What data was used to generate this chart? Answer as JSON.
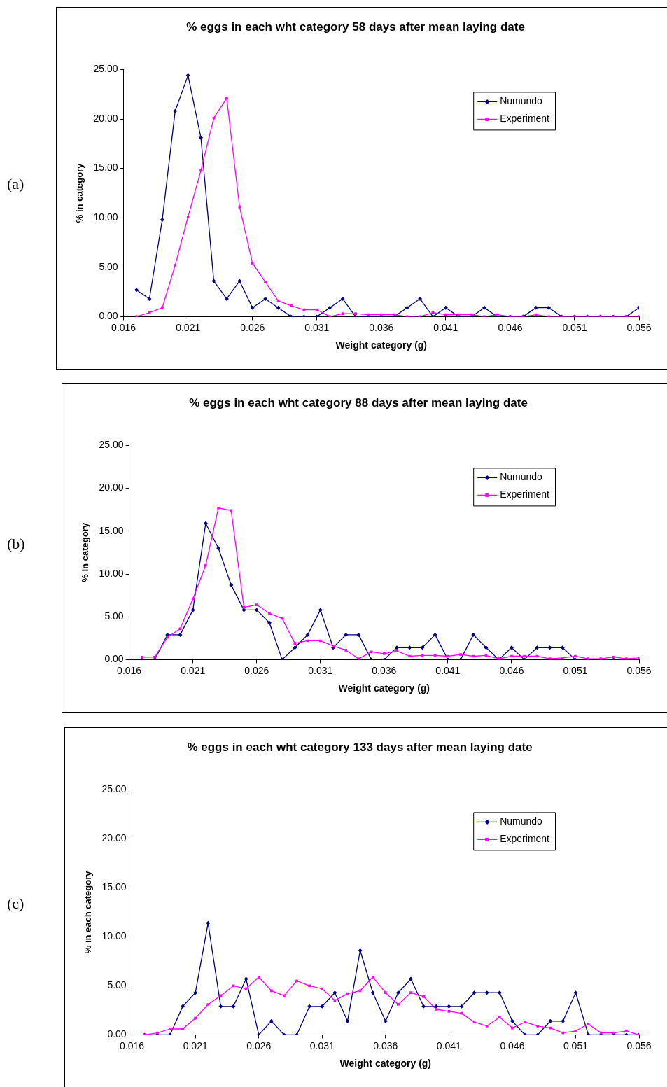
{
  "chart_data": [
    {
      "type": "line",
      "title": "% eggs in each wht category 58 days after mean laying date",
      "xlabel": "Weight category (g)",
      "ylabel": "% in category",
      "annotations": [
        "(a)"
      ],
      "x": [
        0.017,
        0.018,
        0.019,
        0.02,
        0.021,
        0.022,
        0.023,
        0.024,
        0.025,
        0.026,
        0.027,
        0.028,
        0.029,
        0.03,
        0.031,
        0.032,
        0.033,
        0.034,
        0.035,
        0.036,
        0.037,
        0.038,
        0.039,
        0.04,
        0.041,
        0.042,
        0.043,
        0.044,
        0.045,
        0.046,
        0.047,
        0.048,
        0.049,
        0.05,
        0.051,
        0.052,
        0.053,
        0.054,
        0.055,
        0.056
      ],
      "series": [
        {
          "name": "Numundo",
          "color": "#000080",
          "marker": "diamond",
          "values": [
            2.7,
            1.8,
            9.8,
            20.8,
            24.4,
            18.1,
            3.6,
            1.8,
            3.6,
            0.9,
            1.8,
            0.9,
            0,
            0,
            0,
            0.9,
            1.8,
            0,
            0,
            0,
            0,
            0.9,
            1.8,
            0,
            0.9,
            0,
            0,
            0.9,
            0,
            0,
            0,
            0.9,
            0.9,
            0,
            0,
            0,
            0,
            0,
            0,
            0.9
          ]
        },
        {
          "name": "Experiment",
          "color": "#ff00ff",
          "marker": "square",
          "values": [
            0,
            0.4,
            0.9,
            5.2,
            10.1,
            14.8,
            20.1,
            22.1,
            11.1,
            5.4,
            3.5,
            1.6,
            1.1,
            0.7,
            0.7,
            0,
            0.3,
            0.3,
            0.2,
            0.2,
            0.2,
            0,
            0,
            0.4,
            0.2,
            0.2,
            0.2,
            0,
            0.2,
            0,
            0,
            0.2,
            0,
            0,
            0,
            0,
            0,
            0,
            0,
            0
          ]
        }
      ],
      "xlim": [
        0.016,
        0.056
      ],
      "xticks": [
        0.016,
        0.021,
        0.026,
        0.031,
        0.036,
        0.041,
        0.046,
        0.051,
        0.056
      ],
      "ylim": [
        0,
        25
      ],
      "yticks": [
        {
          "value": 0,
          "label": "0.00"
        },
        {
          "value": 5,
          "label": "5.00"
        },
        {
          "value": 10,
          "label": "10.00"
        },
        {
          "value": 15,
          "label": "15.00"
        },
        {
          "value": 20,
          "label": "20.00"
        },
        {
          "value": 25,
          "label": "25.00"
        }
      ],
      "grid": false,
      "legend": "top right",
      "line_style": "solid"
    },
    {
      "type": "line",
      "title": "% eggs in each wht category 88 days after mean laying date",
      "xlabel": "Weight category (g)",
      "ylabel": "% in category",
      "annotations": [
        "(b)"
      ],
      "x": [
        0.017,
        0.018,
        0.019,
        0.02,
        0.021,
        0.022,
        0.023,
        0.024,
        0.025,
        0.026,
        0.027,
        0.028,
        0.029,
        0.03,
        0.031,
        0.032,
        0.033,
        0.034,
        0.035,
        0.036,
        0.037,
        0.038,
        0.039,
        0.04,
        0.041,
        0.042,
        0.043,
        0.044,
        0.045,
        0.046,
        0.047,
        0.048,
        0.049,
        0.05,
        0.051,
        0.052,
        0.053,
        0.054,
        0.055,
        0.056
      ],
      "series": [
        {
          "name": "Numundo",
          "color": "#000080",
          "marker": "diamond",
          "values": [
            0,
            0,
            2.9,
            2.9,
            5.8,
            15.9,
            13.0,
            8.7,
            5.8,
            5.8,
            4.3,
            0,
            1.4,
            2.9,
            5.8,
            1.4,
            2.9,
            2.9,
            0,
            0,
            1.4,
            1.4,
            1.4,
            2.9,
            0,
            0,
            2.9,
            1.4,
            0,
            1.4,
            0,
            1.4,
            1.4,
            1.4,
            0,
            0,
            0,
            0,
            0,
            0
          ]
        },
        {
          "name": "Experiment",
          "color": "#ff00ff",
          "marker": "square",
          "values": [
            0.3,
            0.3,
            2.6,
            3.6,
            7.1,
            11.0,
            17.7,
            17.4,
            6.1,
            6.4,
            5.4,
            4.8,
            1.9,
            2.2,
            2.2,
            1.6,
            1.1,
            0.1,
            0.9,
            0.7,
            1.0,
            0.4,
            0.5,
            0.5,
            0.4,
            0.6,
            0.4,
            0.5,
            0.1,
            0.4,
            0.4,
            0.4,
            0.1,
            0.2,
            0.4,
            0.1,
            0.1,
            0.3,
            0.1,
            0.2
          ]
        }
      ],
      "xlim": [
        0.016,
        0.056
      ],
      "xticks": [
        0.016,
        0.021,
        0.026,
        0.031,
        0.036,
        0.041,
        0.046,
        0.051,
        0.056
      ],
      "ylim": [
        0,
        25
      ],
      "yticks": [
        {
          "value": 0,
          "label": "0.00"
        },
        {
          "value": 5,
          "label": "5.00"
        },
        {
          "value": 10,
          "label": "10.00"
        },
        {
          "value": 15,
          "label": "15.00"
        },
        {
          "value": 20,
          "label": "20.00"
        },
        {
          "value": 25,
          "label": "25.00"
        }
      ],
      "grid": false,
      "legend": "top right",
      "line_style": "solid"
    },
    {
      "type": "line",
      "title": "% eggs in each wht category 133 days after mean laying date",
      "xlabel": "Weight category (g)",
      "ylabel": "% in each category",
      "annotations": [
        "(c)"
      ],
      "x": [
        0.017,
        0.018,
        0.019,
        0.02,
        0.021,
        0.022,
        0.023,
        0.024,
        0.025,
        0.026,
        0.027,
        0.028,
        0.029,
        0.03,
        0.031,
        0.032,
        0.033,
        0.034,
        0.035,
        0.036,
        0.037,
        0.038,
        0.039,
        0.04,
        0.041,
        0.042,
        0.043,
        0.044,
        0.045,
        0.046,
        0.047,
        0.048,
        0.049,
        0.05,
        0.051,
        0.052,
        0.053,
        0.054,
        0.055,
        0.056
      ],
      "series": [
        {
          "name": "Numundo",
          "color": "#000080",
          "marker": "diamond",
          "values": [
            0,
            0,
            0,
            2.9,
            4.3,
            11.4,
            2.9,
            2.9,
            5.7,
            0,
            1.4,
            0,
            0,
            2.9,
            2.9,
            4.3,
            1.4,
            8.6,
            4.3,
            1.4,
            4.3,
            5.7,
            2.9,
            2.9,
            2.9,
            2.9,
            4.3,
            4.3,
            4.3,
            1.4,
            0,
            0,
            1.4,
            1.4,
            4.3,
            0,
            0,
            0,
            0,
            0
          ]
        },
        {
          "name": "Experiment",
          "color": "#ff00ff",
          "marker": "square",
          "values": [
            0,
            0.2,
            0.6,
            0.6,
            1.7,
            3.1,
            4.0,
            5.0,
            4.7,
            5.9,
            4.5,
            4.0,
            5.5,
            5.0,
            4.7,
            3.5,
            4.2,
            4.5,
            5.9,
            4.3,
            3.1,
            4.3,
            3.9,
            2.6,
            2.4,
            2.2,
            1.3,
            0.9,
            1.8,
            0.7,
            1.3,
            0.9,
            0.7,
            0.2,
            0.4,
            1.1,
            0.2,
            0.2,
            0.4,
            0
          ]
        }
      ],
      "xlim": [
        0.016,
        0.056
      ],
      "xticks": [
        0.016,
        0.021,
        0.026,
        0.031,
        0.036,
        0.041,
        0.046,
        0.051,
        0.056
      ],
      "ylim": [
        0,
        25
      ],
      "yticks": [
        {
          "value": 0,
          "label": "0.00"
        },
        {
          "value": 5,
          "label": "5.00"
        },
        {
          "value": 10,
          "label": "10.00"
        },
        {
          "value": 15,
          "label": "15.00"
        },
        {
          "value": 20,
          "label": "20.00"
        },
        {
          "value": 25,
          "label": "25.00"
        }
      ],
      "grid": false,
      "legend": "top right",
      "line_style": "solid"
    }
  ]
}
